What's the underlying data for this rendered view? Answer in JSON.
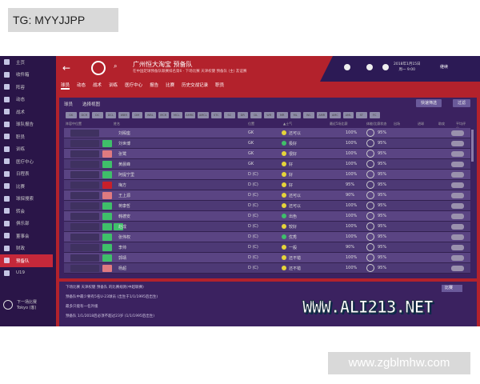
{
  "overlay": {
    "tag": "TG: MYYJJPP",
    "site": "www.zgblmhw.com",
    "watermark": "WWW.ALI213.NET"
  },
  "sidebar": {
    "items": [
      {
        "label": "主页",
        "icon": "home-icon"
      },
      {
        "label": "收件箱",
        "icon": "inbox-icon"
      },
      {
        "label": "阵容",
        "icon": "squad-icon"
      },
      {
        "label": "动态",
        "icon": "dynamics-icon"
      },
      {
        "label": "战术",
        "icon": "tactics-icon"
      },
      {
        "label": "球队报告",
        "icon": "report-icon"
      },
      {
        "label": "职员",
        "icon": "staff-icon"
      },
      {
        "label": "训练",
        "icon": "training-icon"
      },
      {
        "label": "医疗中心",
        "icon": "medical-icon"
      },
      {
        "label": "日程表",
        "icon": "schedule-icon"
      },
      {
        "label": "比赛",
        "icon": "trophy-icon"
      },
      {
        "label": "球探搜索",
        "icon": "search-icon"
      },
      {
        "label": "转会",
        "icon": "transfer-icon"
      },
      {
        "label": "俱乐部",
        "icon": "club-icon"
      },
      {
        "label": "董事会",
        "icon": "board-icon"
      },
      {
        "label": "财政",
        "icon": "finance-icon"
      },
      {
        "label": "预备队",
        "icon": "reserves-icon",
        "active": true
      },
      {
        "label": "U19",
        "icon": "u19-icon"
      }
    ],
    "next_match": {
      "label": "下一场比赛",
      "opponent": "Tokyo (客)"
    }
  },
  "header": {
    "title": "广州恒大淘宝 预备队",
    "subtitle": "在中国足球预备队联赛排名第6 · 下场比赛 天津权健 预备队 (主) 友谊赛",
    "date": "2018年1月15日",
    "time": "周一 9:00",
    "continue": "继续"
  },
  "tabs": [
    "球员",
    "动态",
    "战术",
    "训练",
    "医疗中心",
    "报告",
    "比赛",
    "历史交战记录",
    "职员"
  ],
  "filter": {
    "label": "球员",
    "select": "选择视图",
    "quick": "快速筛选",
    "filter": "过滤"
  },
  "positions": [
    "GK",
    "DCR",
    "DC",
    "DCL",
    "WBR",
    "DM",
    "WBL",
    "MCR",
    "MCL",
    "AMRC",
    "AMCL",
    "STC",
    "SC",
    "DR",
    "DL",
    "WR",
    "MR",
    "ML",
    "WL",
    "AMR",
    "AMC",
    "AML",
    "ST",
    "FC"
  ],
  "columns": [
    "阵容中位置",
    "姓名",
    "位置",
    "▲士气",
    "最近5场比赛",
    "体能/比赛状态",
    "出场",
    "进球",
    "助攻",
    "平均评分"
  ],
  "rows": [
    {
      "badge": "",
      "name": "刘殿座",
      "pos": "GK",
      "morale": "还可以",
      "mc": "y",
      "fit": "100%",
      "cond": "95%"
    },
    {
      "badge": "g",
      "name": "刘世博",
      "pos": "GK",
      "morale": "极好",
      "mc": "g",
      "fit": "100%",
      "cond": "95%"
    },
    {
      "badge": "r",
      "name": "张鹭",
      "pos": "GK",
      "morale": "很好",
      "mc": "y",
      "fit": "100%",
      "cond": "95%"
    },
    {
      "badge": "g",
      "name": "黄晨峰",
      "pos": "GK",
      "morale": "好",
      "mc": "y",
      "fit": "100%",
      "cond": "95%"
    },
    {
      "badge": "g",
      "name": "阿提宁里",
      "pos": "D (C)",
      "morale": "好",
      "mc": "y",
      "fit": "100%",
      "cond": "95%"
    },
    {
      "badge": "R",
      "name": "梅方",
      "pos": "D (C)",
      "morale": "好",
      "mc": "y",
      "fit": "95%",
      "cond": "95%"
    },
    {
      "badge": "r",
      "name": "王上源",
      "pos": "D (C)",
      "morale": "还可以",
      "mc": "y",
      "fit": "90%",
      "cond": "95%"
    },
    {
      "badge": "g",
      "name": "蒋康哲",
      "pos": "D (C)",
      "morale": "还可以",
      "mc": "y",
      "fit": "100%",
      "cond": "95%"
    },
    {
      "badge": "g",
      "name": "韩德安",
      "pos": "D (C)",
      "morale": "出色",
      "mc": "g",
      "fit": "100%",
      "cond": "95%"
    },
    {
      "badge": "gg",
      "name": "赵成",
      "pos": "D (C)",
      "morale": "较好",
      "mc": "y",
      "fit": "100%",
      "cond": "95%"
    },
    {
      "badge": "g",
      "name": "张伟权",
      "pos": "D (C)",
      "morale": "优秀",
      "mc": "g",
      "fit": "100%",
      "cond": "95%"
    },
    {
      "badge": "g",
      "name": "李帅",
      "pos": "D (C)",
      "morale": "一般",
      "mc": "y",
      "fit": "90%",
      "cond": "95%"
    },
    {
      "badge": "g",
      "name": "郭靖",
      "pos": "D (C)",
      "morale": "还不错",
      "mc": "y",
      "fit": "100%",
      "cond": "95%"
    },
    {
      "badge": "r",
      "name": "杨超",
      "pos": "D (C)",
      "morale": "还不错",
      "mc": "y",
      "fit": "100%",
      "cond": "95%"
    }
  ],
  "bottom": {
    "heading": "下场比赛 天津权健 预备队 的比赛规则(中超联赛)",
    "lines": [
      "预备队中最少要有5名U-23球员 (出生于1/1/1995后出生)",
      "最多只能有一名外援",
      "预备队 1/1/2018后必须不超过23岁 (1/1/1995后出生)"
    ],
    "button": "比赛"
  },
  "colors": {
    "sidebar": "#2a1548",
    "header": "#b3222c",
    "panel": "#3b2260",
    "green": "#3fbf6a",
    "red": "#d83a3a"
  }
}
